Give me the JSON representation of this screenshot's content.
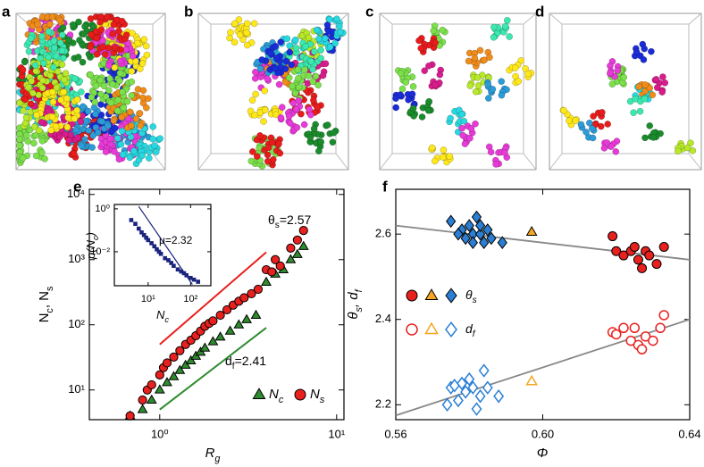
{
  "images": [
    {
      "label": "a"
    },
    {
      "label": "b"
    },
    {
      "label": "c"
    },
    {
      "label": "d"
    }
  ],
  "chart_data": [
    {
      "type": "scatter",
      "panel_label": "e",
      "xlabel": "Rg",
      "ylabel": "Nc, Ns",
      "xscale": "log",
      "yscale": "log",
      "xlim": [
        0.4,
        11
      ],
      "ylim": [
        3.5,
        12000
      ],
      "xticks": [
        {
          "value": 1,
          "label": "10⁰"
        },
        {
          "value": 10,
          "label": "10¹"
        }
      ],
      "yticks": [
        {
          "value": 10,
          "label": "10¹"
        },
        {
          "value": 100,
          "label": "10²"
        },
        {
          "value": 1000,
          "label": "10³"
        },
        {
          "value": 10000,
          "label": "10⁴"
        }
      ],
      "series": [
        {
          "name": "Nc",
          "color": "#2e8b2e",
          "marker": "triangle",
          "filled": true,
          "x": [
            0.68,
            0.8,
            0.9,
            1.0,
            1.1,
            1.2,
            1.3,
            1.4,
            1.5,
            1.6,
            1.7,
            1.8,
            2.0,
            2.2,
            2.5,
            2.8,
            3.1,
            3.5,
            4.0,
            4.5,
            5.0,
            5.5,
            6.0,
            6.5
          ],
          "values": [
            4,
            5,
            7,
            10,
            13,
            16,
            20,
            24,
            28,
            33,
            38,
            44,
            55,
            65,
            80,
            100,
            120,
            140,
            450,
            600,
            700,
            1000,
            1200,
            1600
          ]
        },
        {
          "name": "Ns",
          "color": "#e8201e",
          "marker": "circle",
          "filled": true,
          "x": [
            0.68,
            0.8,
            0.85,
            0.9,
            1.0,
            1.05,
            1.1,
            1.2,
            1.3,
            1.4,
            1.5,
            1.6,
            1.7,
            1.8,
            1.9,
            2.0,
            2.2,
            2.4,
            2.6,
            2.8,
            3.0,
            3.3,
            3.6,
            4.0,
            4.3,
            4.5,
            4.8,
            5.5,
            6.0,
            6.5
          ],
          "values": [
            4,
            7,
            10,
            12,
            17,
            22,
            26,
            32,
            40,
            50,
            58,
            68,
            80,
            95,
            105,
            115,
            140,
            170,
            200,
            230,
            260,
            300,
            350,
            700,
            650,
            1000,
            800,
            1500,
            2000,
            2800
          ]
        }
      ],
      "fit_lines": [
        {
          "color": "#e8201e",
          "x": [
            1,
            4
          ],
          "values": [
            50,
            1300
          ]
        },
        {
          "color": "#2e8b2e",
          "x": [
            1,
            4
          ],
          "values": [
            5,
            90
          ]
        }
      ],
      "annotations": [
        "θs=2.57",
        "df=2.41"
      ],
      "legend": "lower right",
      "inset": {
        "type": "scatter",
        "xlabel": "Nc",
        "ylabel": "p(Nc)",
        "xscale": "log",
        "yscale": "log",
        "xlim": [
          1.6,
          300
        ],
        "ylim": [
          0.00026,
          1.6
        ],
        "xticks": [
          {
            "value": 10,
            "label": "10¹"
          },
          {
            "value": 100,
            "label": "10²"
          }
        ],
        "yticks": [
          {
            "value": 1,
            "label": "10⁰"
          },
          {
            "value": 0.01,
            "label": "10⁻²"
          }
        ],
        "series": [
          {
            "color": "#1a237e",
            "marker": "square",
            "filled": true,
            "x": [
              4,
              5,
              6,
              7,
              8,
              9,
              10,
              12,
              14,
              16,
              18,
              20,
              25,
              30,
              35,
              40,
              50,
              60,
              70,
              80,
              100,
              120,
              150
            ],
            "values": [
              0.3,
              0.2,
              0.12,
              0.08,
              0.06,
              0.045,
              0.035,
              0.025,
              0.018,
              0.013,
              0.01,
              0.008,
              0.005,
              0.004,
              0.003,
              0.0022,
              0.0015,
              0.0012,
              0.001,
              0.0008,
              0.0006,
              0.0005,
              0.0004
            ]
          }
        ],
        "fit_lines": [
          {
            "color": "#1a237e",
            "x": [
              6,
              110
            ],
            "values": [
              1.3,
              0.0003
            ]
          }
        ],
        "annotations": [
          "μ=2.32"
        ]
      }
    },
    {
      "type": "scatter",
      "panel_label": "f",
      "xlabel": "Φ",
      "ylabel": "θs, df",
      "xlim": [
        0.56,
        0.64
      ],
      "ylim": [
        2.165,
        2.705
      ],
      "xticks": [
        0.56,
        {
          "value": 0.6,
          "label": "0.60"
        },
        0.64
      ],
      "yticks": [
        2.2,
        2.4,
        2.6
      ],
      "series": [
        {
          "name": "θs",
          "color": "#e8201e",
          "marker": "circle",
          "filled": true,
          "x": [
            0.619,
            0.62,
            0.622,
            0.624,
            0.625,
            0.626,
            0.627,
            0.628,
            0.629,
            0.631,
            0.633
          ],
          "values": [
            2.595,
            2.56,
            2.55,
            2.56,
            2.57,
            2.54,
            2.52,
            2.56,
            2.55,
            2.53,
            2.57
          ]
        },
        {
          "name": "θs",
          "color": "#f5a623",
          "marker": "triangle",
          "filled": true,
          "x": [
            0.597
          ],
          "values": [
            2.605
          ]
        },
        {
          "name": "θs",
          "color": "#2a7fd4",
          "marker": "diamond",
          "filled": true,
          "x": [
            0.575,
            0.578,
            0.579,
            0.58,
            0.581,
            0.582,
            0.583,
            0.584,
            0.585,
            0.586,
            0.581,
            0.583,
            0.589,
            0.577
          ],
          "values": [
            2.63,
            2.61,
            2.59,
            2.62,
            2.6,
            2.64,
            2.6,
            2.58,
            2.61,
            2.59,
            2.58,
            2.62,
            2.58,
            2.6
          ]
        },
        {
          "name": "df",
          "color": "#e8201e",
          "marker": "circle",
          "filled": false,
          "x": [
            0.619,
            0.62,
            0.622,
            0.624,
            0.625,
            0.626,
            0.627,
            0.628,
            0.63,
            0.632,
            0.633
          ],
          "values": [
            2.37,
            2.365,
            2.38,
            2.35,
            2.38,
            2.34,
            2.33,
            2.36,
            2.35,
            2.38,
            2.41
          ]
        },
        {
          "name": "df",
          "color": "#f5a623",
          "marker": "triangle",
          "filled": false,
          "x": [
            0.597
          ],
          "values": [
            2.255
          ]
        },
        {
          "name": "df",
          "color": "#2a7fd4",
          "marker": "diamond",
          "filled": false,
          "x": [
            0.574,
            0.575,
            0.577,
            0.578,
            0.579,
            0.58,
            0.581,
            0.582,
            0.583,
            0.584,
            0.585,
            0.588,
            0.576
          ],
          "values": [
            2.2,
            2.24,
            2.21,
            2.25,
            2.23,
            2.26,
            2.24,
            2.19,
            2.22,
            2.28,
            2.24,
            2.22,
            2.245
          ]
        }
      ],
      "fit_lines": [
        {
          "color": "#888888",
          "x": [
            0.56,
            0.64
          ],
          "values": [
            2.62,
            2.54
          ]
        },
        {
          "color": "#888888",
          "x": [
            0.56,
            0.64
          ],
          "values": [
            2.175,
            2.4
          ]
        }
      ]
    }
  ]
}
